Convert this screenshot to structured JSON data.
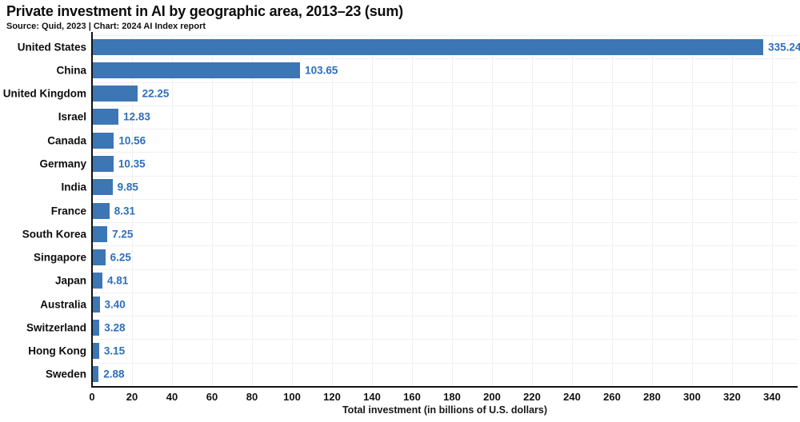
{
  "header": {
    "title": "Private investment in AI by geographic area, 2013–23 (sum)",
    "subtitle": "Source: Quid, 2023 | Chart: 2024 AI Index report"
  },
  "chart_data": {
    "type": "bar",
    "orientation": "horizontal",
    "title": "Private investment in AI by geographic area, 2013–23 (sum)",
    "subtitle": "Source: Quid, 2023 | Chart: 2024 AI Index report",
    "categories": [
      "United States",
      "China",
      "United Kingdom",
      "Israel",
      "Canada",
      "Germany",
      "India",
      "France",
      "South Korea",
      "Singapore",
      "Japan",
      "Australia",
      "Switzerland",
      "Hong Kong",
      "Sweden"
    ],
    "values": [
      335.24,
      103.65,
      22.25,
      12.83,
      10.56,
      10.35,
      9.85,
      8.31,
      7.25,
      6.25,
      4.81,
      3.4,
      3.28,
      3.15,
      2.88
    ],
    "value_labels": [
      "335.24",
      "103.65",
      "22.25",
      "12.83",
      "10.56",
      "10.35",
      "9.85",
      "8.31",
      "7.25",
      "6.25",
      "4.81",
      "3.40",
      "3.28",
      "3.15",
      "2.88"
    ],
    "xlabel": "Total investment (in billions of U.S. dollars)",
    "xlim": [
      0,
      353
    ],
    "xticks": [
      0,
      20,
      40,
      60,
      80,
      100,
      120,
      140,
      160,
      180,
      200,
      220,
      240,
      260,
      280,
      300,
      320,
      340
    ],
    "grid": true,
    "legend": "none",
    "colors": {
      "bar": "#3d76b4",
      "value_label": "#2e6fba",
      "axis": "#111111",
      "gridline": "#f0f0f2",
      "text": "#0d0d0d"
    }
  }
}
